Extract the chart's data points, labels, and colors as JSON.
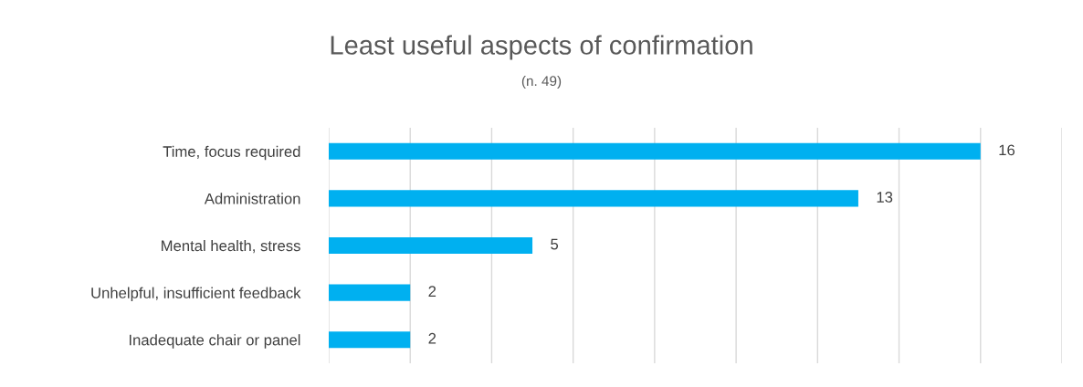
{
  "chart_data": {
    "type": "bar",
    "orientation": "horizontal",
    "title": "Least useful aspects of confirmation",
    "subtitle": "(n. 49)",
    "categories": [
      "Time, focus required",
      "Administration",
      "Mental health, stress",
      "Unhelpful, insufficient feedback",
      "Inadequate chair or panel"
    ],
    "values": [
      16,
      13,
      5,
      2,
      2
    ],
    "color": "#00b0f0",
    "data_labels": true,
    "xlim": [
      0,
      18
    ],
    "xticks": [
      {
        "value": 0,
        "label": null
      },
      {
        "value": 2,
        "label": null
      },
      {
        "value": 4,
        "label": null
      },
      {
        "value": 6,
        "label": null
      },
      {
        "value": 8,
        "label": null
      },
      {
        "value": 10,
        "label": null
      },
      {
        "value": 12,
        "label": null
      },
      {
        "value": 14,
        "label": null
      },
      {
        "value": 16,
        "label": null
      },
      {
        "value": 18,
        "label": null
      }
    ],
    "tick_labels": "y",
    "grid": "x",
    "legend": false
  }
}
